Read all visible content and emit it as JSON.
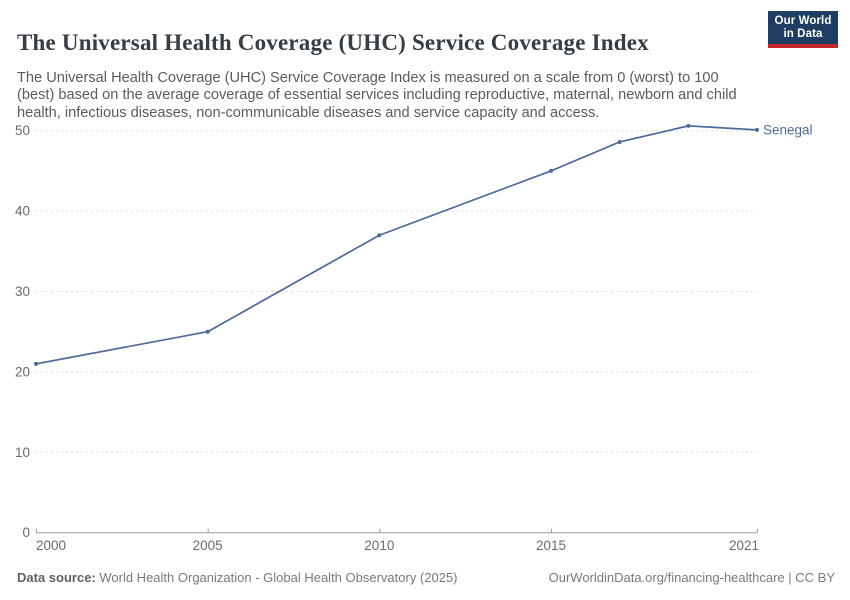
{
  "header": {
    "title": "The Universal Health Coverage (UHC) Service Coverage Index",
    "subtitle": "The Universal Health Coverage (UHC) Service Coverage Index is measured on a scale from 0 (worst) to 100 (best) based on the average coverage of essential services including reproductive, maternal, newborn and child health, infectious diseases, non-communicable diseases and service capacity and access.",
    "logo": {
      "line1": "Our World",
      "line2": "in Data",
      "bg_color": "#1d3d63",
      "stripe_color": "#c5282c"
    }
  },
  "chart_data": {
    "type": "line",
    "title": "The Universal Health Coverage (UHC) Service Coverage Index",
    "xlabel": "",
    "ylabel": "",
    "xlim": [
      2000,
      2021
    ],
    "ylim": [
      0,
      50
    ],
    "x_ticks": [
      2000,
      2005,
      2010,
      2015,
      2021
    ],
    "y_ticks": [
      0,
      10,
      20,
      30,
      40,
      50
    ],
    "grid": "horizontal-dashed",
    "legend_position": "end-of-line-label",
    "series": [
      {
        "name": "Senegal",
        "color": "#4c6a9c",
        "x": [
          2000,
          2005,
          2010,
          2015,
          2017,
          2019,
          2021
        ],
        "values": [
          21,
          25,
          37,
          45,
          48.6,
          50.6,
          50.1
        ]
      }
    ],
    "colors": {
      "gridline": "#dbdbdb",
      "axis": "#9e9e9e",
      "tick_label": "#6b6b6b"
    }
  },
  "footer": {
    "datasource_label": "Data source:",
    "datasource_text": " World Health Organization - Global Health Observatory (2025)",
    "credit": "OurWorldinData.org/financing-healthcare | CC BY"
  }
}
